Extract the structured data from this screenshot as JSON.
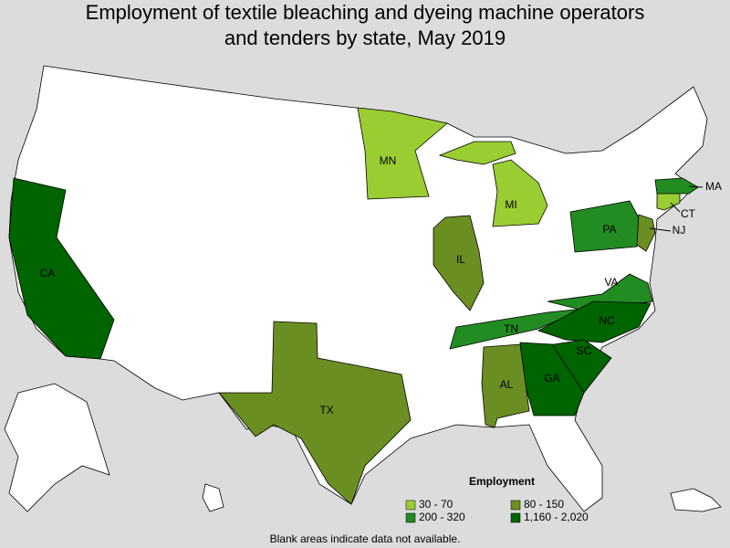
{
  "title": "Employment of textile bleaching and dyeing machine operators and tenders by state, May 2019",
  "legend": {
    "title": "Employment",
    "items": [
      {
        "label": "30 - 70",
        "color": "#9acd32"
      },
      {
        "label": "80 - 150",
        "color": "#6b8e23"
      },
      {
        "label": "200 - 320",
        "color": "#228b22"
      },
      {
        "label": "1,160 - 2,020",
        "color": "#006400"
      }
    ]
  },
  "states": [
    {
      "label": "CA",
      "color": "#006400"
    },
    {
      "label": "TX",
      "color": "#6b8e23"
    },
    {
      "label": "MN",
      "color": "#9acd32"
    },
    {
      "label": "MI",
      "color": "#9acd32"
    },
    {
      "label": "IL",
      "color": "#6b8e23"
    },
    {
      "label": "PA",
      "color": "#228b22"
    },
    {
      "label": "NJ",
      "color": "#6b8e23"
    },
    {
      "label": "CT",
      "color": "#9acd32"
    },
    {
      "label": "MA",
      "color": "#228b22"
    },
    {
      "label": "VA",
      "color": "#228b22"
    },
    {
      "label": "TN",
      "color": "#228b22"
    },
    {
      "label": "NC",
      "color": "#006400"
    },
    {
      "label": "SC",
      "color": "#006400"
    },
    {
      "label": "GA",
      "color": "#006400"
    },
    {
      "label": "AL",
      "color": "#6b8e23"
    }
  ],
  "note": "Blank areas indicate data not available."
}
